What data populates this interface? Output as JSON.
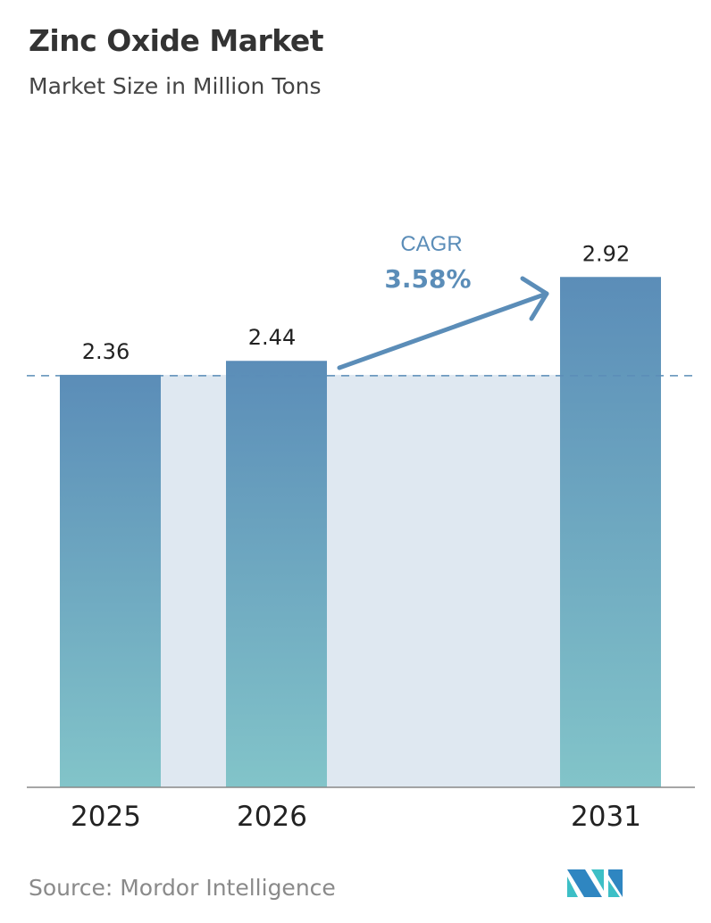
{
  "chart_data": {
    "type": "bar",
    "title": "Zinc Oxide Market",
    "subtitle": "Market Size in Million Tons",
    "categories": [
      "2025",
      "2026",
      "2031"
    ],
    "values": [
      2.36,
      2.44,
      2.92
    ],
    "data_labels": [
      "2.36",
      "2.44",
      "2.92"
    ],
    "annotation": {
      "label": "CAGR",
      "value": "3.58%"
    },
    "grid": false,
    "colors": {
      "bar_top": "#5b8db8",
      "bar_bottom": "#82c4c9",
      "shade": "#dfe8f1",
      "annotation": "#5b8db8"
    }
  },
  "source": "Source:  Mordor Intelligence"
}
